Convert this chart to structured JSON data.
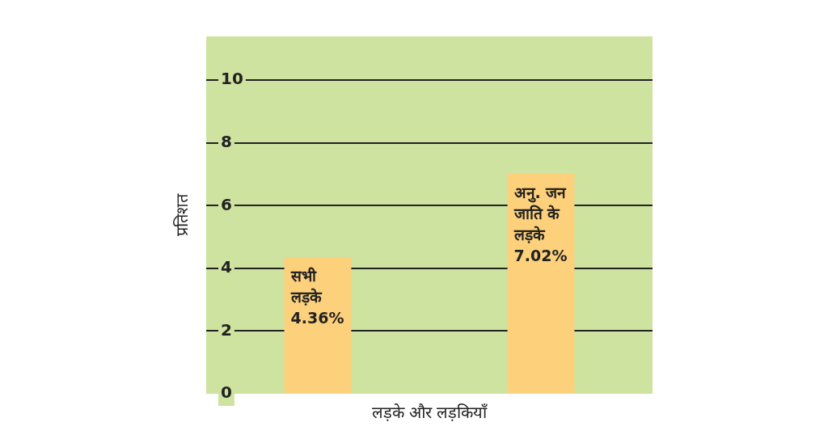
{
  "chart_data": {
    "type": "bar",
    "xlabel": "लड़के और लड़कियाँ",
    "ylabel": "प्रतिशत",
    "categories": [
      "सभी लड़के",
      "अनु. जन जाति के लड़के"
    ],
    "values": [
      4.36,
      7.02
    ],
    "value_labels": [
      "4.36%",
      "7.02%"
    ],
    "color": "#fdd07b",
    "ylim": [
      0,
      11.4
    ],
    "yticks": [
      0,
      2,
      4,
      6,
      8,
      10
    ],
    "grid": "y",
    "tick_labels": "y"
  }
}
